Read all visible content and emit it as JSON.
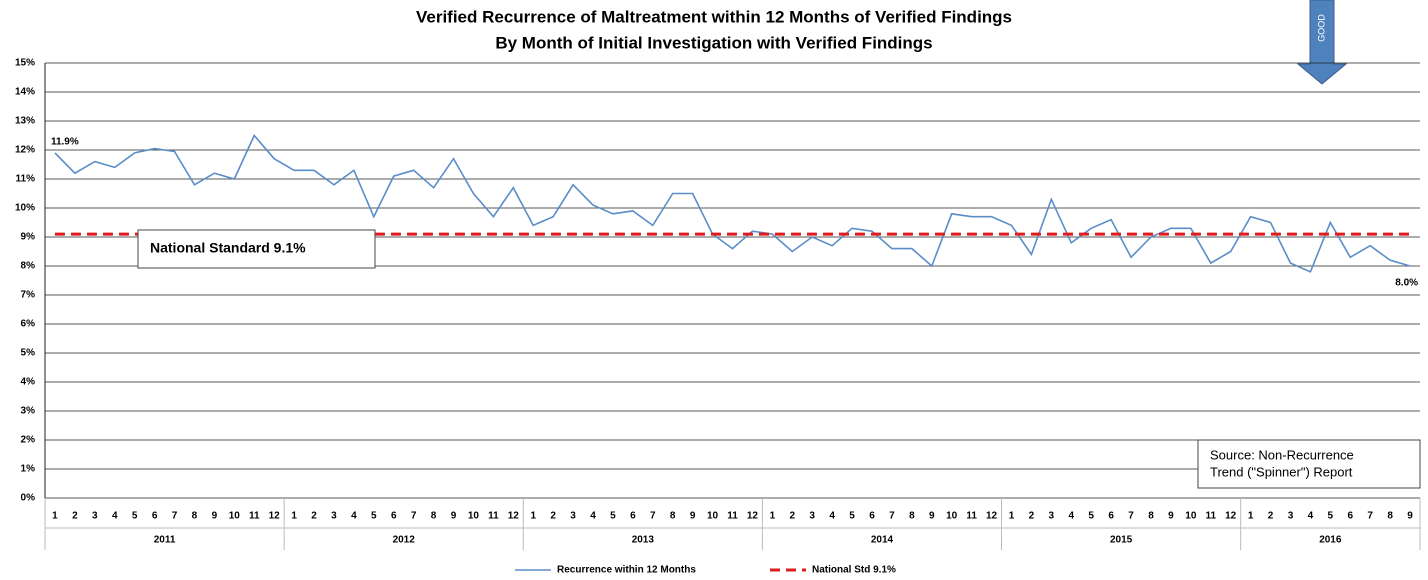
{
  "chart_data": {
    "type": "line",
    "title": "Verified Recurrence of Maltreatment within 12 Months of Verified Findings",
    "subtitle": "By Month of Initial Investigation with Verified Findings",
    "categories": [
      "1",
      "2",
      "3",
      "4",
      "5",
      "6",
      "7",
      "8",
      "9",
      "10",
      "11",
      "12",
      "1",
      "2",
      "3",
      "4",
      "5",
      "6",
      "7",
      "8",
      "9",
      "10",
      "11",
      "12",
      "1",
      "2",
      "3",
      "4",
      "5",
      "6",
      "7",
      "8",
      "9",
      "10",
      "11",
      "12",
      "1",
      "2",
      "3",
      "4",
      "5",
      "6",
      "7",
      "8",
      "9",
      "10",
      "11",
      "12",
      "1",
      "2",
      "3",
      "4",
      "5",
      "6",
      "7",
      "8",
      "9",
      "10",
      "11",
      "12",
      "1",
      "2",
      "3",
      "4",
      "5",
      "6",
      "7",
      "8",
      "9"
    ],
    "category_groups": [
      "2011",
      "2012",
      "2013",
      "2014",
      "2015",
      "2016"
    ],
    "series": [
      {
        "name": "Recurrence within 12 Months",
        "color": "#5b8dc8",
        "dash": false,
        "values": [
          11.9,
          11.2,
          11.6,
          11.4,
          11.9,
          12.05,
          11.95,
          10.8,
          11.2,
          11.0,
          12.5,
          11.7,
          11.3,
          11.3,
          10.8,
          11.3,
          9.7,
          11.1,
          11.3,
          10.7,
          11.7,
          10.5,
          9.7,
          10.7,
          9.4,
          9.7,
          10.8,
          10.1,
          9.8,
          9.9,
          9.4,
          10.5,
          10.5,
          9.1,
          8.6,
          9.2,
          9.1,
          8.5,
          9.0,
          8.7,
          9.3,
          9.2,
          8.6,
          8.6,
          8.0,
          9.8,
          9.7,
          9.7,
          9.4,
          8.4,
          10.3,
          8.8,
          9.3,
          9.6,
          8.3,
          9.0,
          9.3,
          9.3,
          8.1,
          8.5,
          9.7,
          9.5,
          8.1,
          7.8,
          9.5,
          8.3,
          8.7,
          8.2,
          8.0
        ],
        "value_labels": [
          "11.9%",
          null,
          null,
          null,
          null,
          null,
          null,
          null,
          null,
          null,
          null,
          null,
          null,
          null,
          null,
          null,
          null,
          null,
          null,
          null,
          null,
          null,
          null,
          null,
          null,
          null,
          null,
          null,
          null,
          null,
          null,
          null,
          null,
          null,
          null,
          null,
          null,
          null,
          null,
          null,
          null,
          null,
          null,
          null,
          null,
          null,
          null,
          null,
          null,
          null,
          null,
          null,
          null,
          null,
          null,
          null,
          null,
          null,
          null,
          null,
          null,
          null,
          null,
          null,
          null,
          null,
          null,
          null,
          "8.0%"
        ]
      },
      {
        "name": "National Std 9.1%",
        "color": "#e31a1c",
        "dash": true,
        "values": [
          9.1,
          9.1,
          9.1,
          9.1,
          9.1,
          9.1,
          9.1,
          9.1,
          9.1,
          9.1,
          9.1,
          9.1,
          9.1,
          9.1,
          9.1,
          9.1,
          9.1,
          9.1,
          9.1,
          9.1,
          9.1,
          9.1,
          9.1,
          9.1,
          9.1,
          9.1,
          9.1,
          9.1,
          9.1,
          9.1,
          9.1,
          9.1,
          9.1,
          9.1,
          9.1,
          9.1,
          9.1,
          9.1,
          9.1,
          9.1,
          9.1,
          9.1,
          9.1,
          9.1,
          9.1,
          9.1,
          9.1,
          9.1,
          9.1,
          9.1,
          9.1,
          9.1,
          9.1,
          9.1,
          9.1,
          9.1,
          9.1,
          9.1,
          9.1,
          9.1,
          9.1,
          9.1,
          9.1,
          9.1,
          9.1,
          9.1,
          9.1,
          9.1,
          9.1
        ]
      }
    ],
    "ylim": [
      0,
      15
    ],
    "yticks": [
      {
        "value": 0,
        "label": "0%"
      },
      {
        "value": 1,
        "label": "1%"
      },
      {
        "value": 2,
        "label": "2%"
      },
      {
        "value": 3,
        "label": "3%"
      },
      {
        "value": 4,
        "label": "4%"
      },
      {
        "value": 5,
        "label": "5%"
      },
      {
        "value": 6,
        "label": "6%"
      },
      {
        "value": 7,
        "label": "7%"
      },
      {
        "value": 8,
        "label": "8%"
      },
      {
        "value": 9,
        "label": "9%"
      },
      {
        "value": 10,
        "label": "10%"
      },
      {
        "value": 11,
        "label": "11%"
      },
      {
        "value": 12,
        "label": "12%"
      },
      {
        "value": 13,
        "label": "13%"
      },
      {
        "value": 14,
        "label": "14%"
      },
      {
        "value": 15,
        "label": "15%"
      }
    ],
    "grid": true,
    "annotations": [
      "National Standard 9.1%",
      "GOOD"
    ],
    "source": [
      "Source: Non-Recurrence",
      "Trend (\"Spinner\") Report"
    ]
  }
}
